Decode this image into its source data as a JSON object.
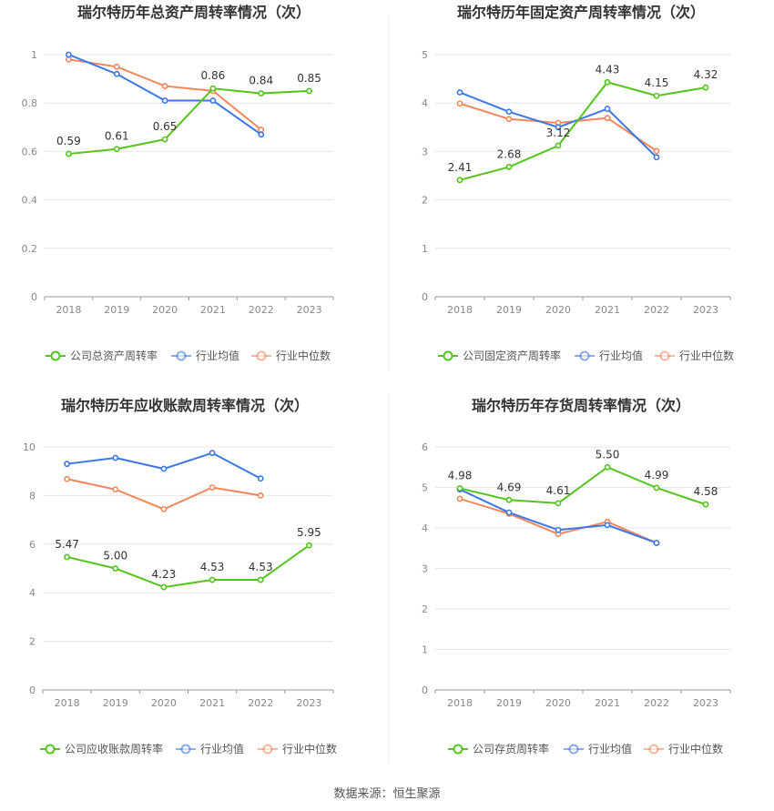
{
  "source": "数据来源：恒生聚源",
  "chart_data": [
    {
      "type": "line",
      "title": "瑞尔特历年总资产周转率情况（次）",
      "categories": [
        "2018",
        "2019",
        "2020",
        "2021",
        "2022",
        "2023"
      ],
      "ylim": [
        0,
        1
      ],
      "yticks": [
        "0",
        "0.2",
        "0.4",
        "0.6",
        "0.8",
        "1"
      ],
      "yticks_num": [
        0,
        0.2,
        0.4,
        0.6,
        0.8,
        1
      ],
      "series": [
        {
          "name": "公司总资产周转率",
          "color": "#52c41a",
          "values": [
            0.59,
            0.61,
            0.65,
            0.86,
            0.84,
            0.85
          ],
          "labels": [
            "0.59",
            "0.61",
            "0.65",
            "0.86",
            "0.84",
            "0.85"
          ]
        },
        {
          "name": "行业均值",
          "color": "#3b78e7",
          "values": [
            1.0,
            0.92,
            0.81,
            0.81,
            0.67,
            null
          ]
        },
        {
          "name": "行业中位数",
          "color": "#f5865a",
          "values": [
            0.98,
            0.95,
            0.87,
            0.85,
            0.69,
            null
          ]
        }
      ]
    },
    {
      "type": "line",
      "title": "瑞尔特历年固定资产周转率情况（次）",
      "categories": [
        "2018",
        "2019",
        "2020",
        "2021",
        "2022",
        "2023"
      ],
      "ylim": [
        0,
        5
      ],
      "yticks": [
        "0",
        "1",
        "2",
        "3",
        "4",
        "5"
      ],
      "yticks_num": [
        0,
        1,
        2,
        3,
        4,
        5
      ],
      "series": [
        {
          "name": "公司固定资产周转率",
          "color": "#52c41a",
          "values": [
            2.41,
            2.68,
            3.12,
            4.43,
            4.15,
            4.32
          ],
          "labels": [
            "2.41",
            "2.68",
            "3.12",
            "4.43",
            "4.15",
            "4.32"
          ]
        },
        {
          "name": "行业均值",
          "color": "#3b78e7",
          "values": [
            4.22,
            3.82,
            3.5,
            3.88,
            2.88,
            null
          ]
        },
        {
          "name": "行业中位数",
          "color": "#f5865a",
          "values": [
            3.99,
            3.67,
            3.59,
            3.69,
            3.01,
            null
          ]
        }
      ]
    },
    {
      "type": "line",
      "title": "瑞尔特历年应收账款周转率情况（次）",
      "categories": [
        "2018",
        "2019",
        "2020",
        "2021",
        "2022",
        "2023"
      ],
      "ylim": [
        0,
        10
      ],
      "yticks": [
        "0",
        "2",
        "4",
        "6",
        "8",
        "10"
      ],
      "yticks_num": [
        0,
        2,
        4,
        6,
        8,
        10
      ],
      "series": [
        {
          "name": "公司应收账款周转率",
          "color": "#52c41a",
          "values": [
            5.47,
            5.0,
            4.23,
            4.53,
            4.53,
            5.95
          ],
          "labels": [
            "5.47",
            "5.00",
            "4.23",
            "4.53",
            "4.53",
            "5.95"
          ]
        },
        {
          "name": "行业均值",
          "color": "#3b78e7",
          "values": [
            9.3,
            9.55,
            9.1,
            9.75,
            8.7,
            null
          ]
        },
        {
          "name": "行业中位数",
          "color": "#f5865a",
          "values": [
            8.68,
            8.25,
            7.44,
            8.33,
            8.0,
            null
          ]
        }
      ]
    },
    {
      "type": "line",
      "title": "瑞尔特历年存货周转率情况（次）",
      "categories": [
        "2018",
        "2019",
        "2020",
        "2021",
        "2022",
        "2023"
      ],
      "ylim": [
        0,
        6
      ],
      "yticks": [
        "0",
        "1",
        "2",
        "3",
        "4",
        "5",
        "6"
      ],
      "yticks_num": [
        0,
        1,
        2,
        3,
        4,
        5,
        6
      ],
      "series": [
        {
          "name": "公司存货周转率",
          "color": "#52c41a",
          "values": [
            4.98,
            4.69,
            4.61,
            5.5,
            4.99,
            4.58
          ],
          "labels": [
            "4.98",
            "4.69",
            "4.61",
            "5.50",
            "4.99",
            "4.58"
          ]
        },
        {
          "name": "行业均值",
          "color": "#3b78e7",
          "values": [
            4.95,
            4.38,
            3.95,
            4.07,
            3.63,
            null
          ]
        },
        {
          "name": "行业中位数",
          "color": "#f5865a",
          "values": [
            4.72,
            4.35,
            3.85,
            4.15,
            3.63,
            null
          ]
        }
      ]
    }
  ]
}
